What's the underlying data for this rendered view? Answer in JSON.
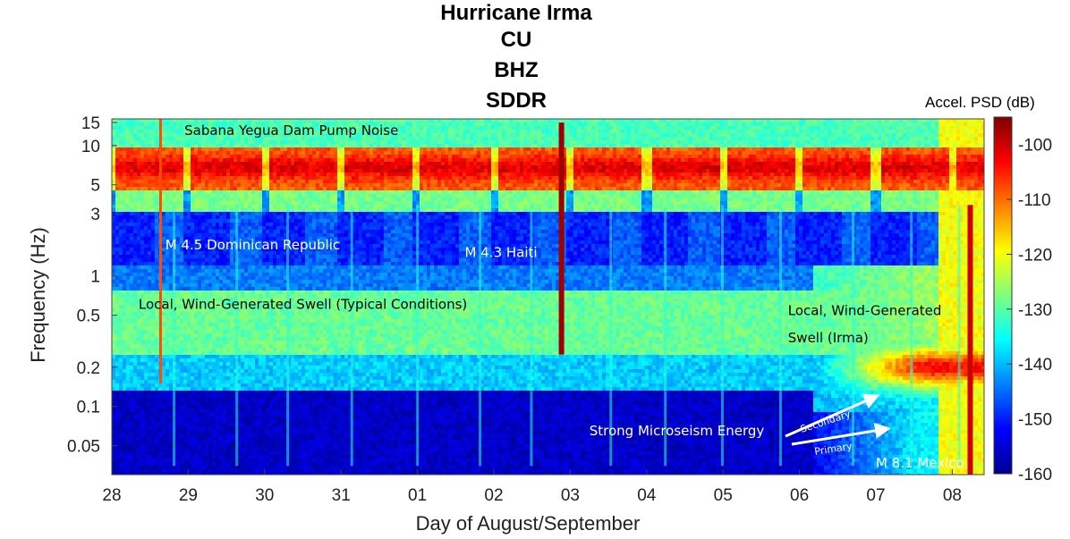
{
  "chart_data": {
    "type": "heatmap",
    "title_lines": [
      "Hurricane Irma",
      "CU",
      "BHZ",
      "SDDR"
    ],
    "xlabel": "Day of August/September",
    "ylabel": "Frequency (Hz)",
    "x_ticks": [
      "28",
      "29",
      "30",
      "31",
      "01",
      "02",
      "03",
      "04",
      "05",
      "06",
      "07",
      "08"
    ],
    "xlim_days": [
      0,
      11.5
    ],
    "y_scale": "log",
    "ylim_hz": [
      0.03,
      16
    ],
    "y_ticks": [
      {
        "value": 15,
        "label": "15"
      },
      {
        "value": 10,
        "label": "10"
      },
      {
        "value": 5,
        "label": "5"
      },
      {
        "value": 3,
        "label": "3"
      },
      {
        "value": 1,
        "label": "1"
      },
      {
        "value": 0.5,
        "label": "0.5"
      },
      {
        "value": 0.2,
        "label": "0.2"
      },
      {
        "value": 0.1,
        "label": "0.1"
      },
      {
        "value": 0.05,
        "label": "0.05"
      }
    ],
    "colorbar": {
      "title": "Accel. PSD (dB)",
      "range": [
        -160,
        -95
      ],
      "ticks": [
        {
          "value": -100,
          "label": "-100"
        },
        {
          "value": -110,
          "label": "-110"
        },
        {
          "value": -120,
          "label": "-120"
        },
        {
          "value": -130,
          "label": "-130"
        },
        {
          "value": -140,
          "label": "-140"
        },
        {
          "value": -150,
          "label": "-150"
        },
        {
          "value": -160,
          "label": "-160"
        }
      ],
      "colormap": "jet"
    },
    "annotations": [
      {
        "text": "Sabana Yegua Dam Pump Noise",
        "day": 0.95,
        "freq": 12,
        "color": "#000000"
      },
      {
        "text": "M 4.5 Dominican Republic",
        "day": 0.7,
        "freq": 1.6,
        "color": "#ffffff"
      },
      {
        "text": "M 4.3 Haiti",
        "day": 4.62,
        "freq": 1.4,
        "color": "#ffffff"
      },
      {
        "text": "Local, Wind-Generated Swell (Typical Conditions)",
        "day": 0.35,
        "freq": 0.56,
        "color": "#000000"
      },
      {
        "text": "Local, Wind-Generated",
        "day": 8.85,
        "freq": 0.5,
        "color": "#000000"
      },
      {
        "text": "Swell (Irma)",
        "day": 8.85,
        "freq": 0.31,
        "color": "#000000"
      },
      {
        "text": "Strong Microseism Energy",
        "day": 6.25,
        "freq": 0.06,
        "color": "#ffffff"
      },
      {
        "text": "M 8.1 Mexico",
        "day": 10.0,
        "freq": 0.034,
        "color": "#ffffff"
      }
    ],
    "arrow_labels": [
      {
        "text": "Secondary",
        "color": "#ffffff"
      },
      {
        "text": "Primary",
        "color": "#ffffff"
      }
    ],
    "events": [
      {
        "name": "M 4.5 Dominican Republic",
        "day": 0.62
      },
      {
        "name": "M 4.3 Haiti",
        "day": 5.85
      },
      {
        "name": "M 8.1 Mexico",
        "day": 11.2
      }
    ]
  }
}
